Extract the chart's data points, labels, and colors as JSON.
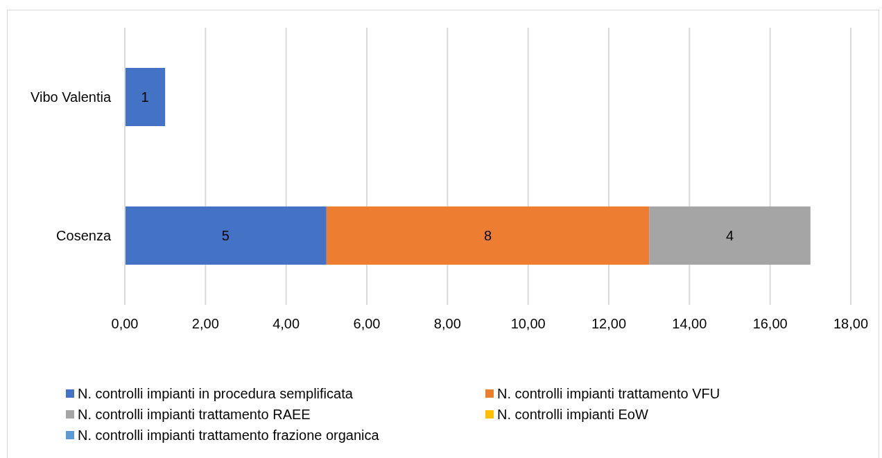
{
  "chart_data": {
    "type": "bar",
    "orientation": "horizontal",
    "stacked": true,
    "categories": [
      "Vibo Valentia",
      "Cosenza"
    ],
    "series": [
      {
        "name": "N. controlli impianti in procedura semplificata",
        "color": "#4472c4",
        "values": [
          1,
          5
        ]
      },
      {
        "name": "N. controlli impianti trattamento VFU",
        "color": "#ed7d31",
        "values": [
          null,
          8
        ]
      },
      {
        "name": "N. controlli impianti trattamento RAEE",
        "color": "#a5a5a5",
        "values": [
          null,
          4
        ]
      },
      {
        "name": "N. controlli impianti EoW",
        "color": "#ffc000",
        "values": [
          null,
          null
        ]
      },
      {
        "name": "N. controlli impianti trattamento frazione organica",
        "color": "#5b9bd5",
        "values": [
          null,
          null
        ]
      }
    ],
    "xlim": [
      0,
      18
    ],
    "xticks": [
      {
        "value": 0,
        "label": "0,00"
      },
      {
        "value": 2,
        "label": "2,00"
      },
      {
        "value": 4,
        "label": "4,00"
      },
      {
        "value": 6,
        "label": "6,00"
      },
      {
        "value": 8,
        "label": "8,00"
      },
      {
        "value": 10,
        "label": "10,00"
      },
      {
        "value": 12,
        "label": "12,00"
      },
      {
        "value": 14,
        "label": "14,00"
      },
      {
        "value": 16,
        "label": "16,00"
      },
      {
        "value": 18,
        "label": "18,00"
      }
    ],
    "grid": "x",
    "legend": "bottom",
    "data_labels": true
  }
}
